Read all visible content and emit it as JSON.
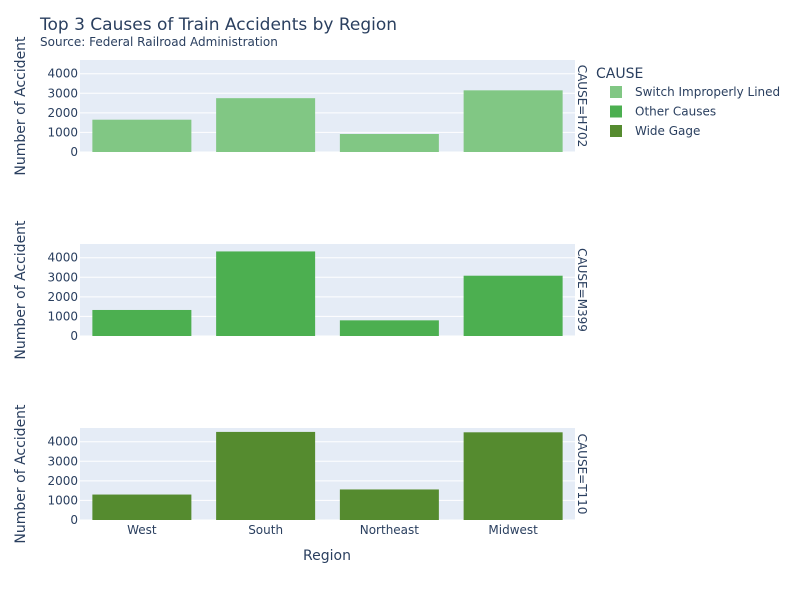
{
  "chart_data": {
    "type": "bar",
    "title": "Top 3 Causes of Train Accidents by Region",
    "subtitle": "Source: Federal Railroad Administration",
    "xlabel": "Region",
    "ylabel": "Number of Accident",
    "categories": [
      "West",
      "South",
      "Northeast",
      "Midwest"
    ],
    "ylim": [
      0,
      4700
    ],
    "yticks": [
      0,
      1000,
      2000,
      3000,
      4000
    ],
    "grid": true,
    "legend_title": "CAUSE",
    "legend_placement": "top-right",
    "series": [
      {
        "name": "Switch Improperly Lined",
        "facet_label": "CAUSE=H702",
        "color": "#81c784",
        "values": [
          1650,
          2750,
          920,
          3150
        ]
      },
      {
        "name": "Other Causes",
        "facet_label": "CAUSE=M399",
        "color": "#4caf50",
        "values": [
          1330,
          4320,
          800,
          3080
        ]
      },
      {
        "name": "Wide Gage",
        "facet_label": "CAUSE=T110",
        "color": "#558b2f",
        "values": [
          1300,
          4500,
          1560,
          4480
        ]
      }
    ]
  }
}
